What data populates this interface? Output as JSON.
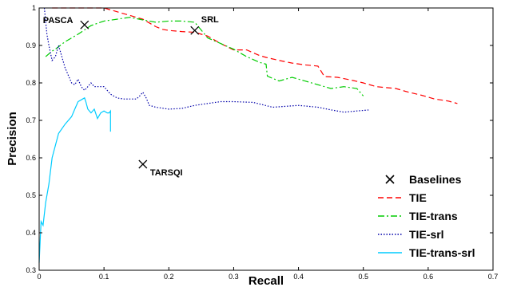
{
  "chart_data": {
    "type": "line",
    "xlabel": "Recall",
    "ylabel": "Precision",
    "xlim": [
      0,
      0.7
    ],
    "ylim": [
      0.3,
      1.0
    ],
    "xticks": [
      0,
      0.1,
      0.2,
      0.3,
      0.4,
      0.5,
      0.6,
      0.7
    ],
    "yticks": [
      0.3,
      0.4,
      0.5,
      0.6,
      0.7,
      0.8,
      0.9,
      1.0
    ],
    "xtick_labels": [
      "0",
      "0.1",
      "0.2",
      "0.3",
      "0.4",
      "0.5",
      "0.6",
      "0.7"
    ],
    "ytick_labels": [
      "0.3",
      "0.4",
      "0.5",
      "0.6",
      "0.7",
      "0.8",
      "0.9",
      "1"
    ],
    "grid": false,
    "legend_position": "bottom-right",
    "baselines": {
      "name": "Baselines",
      "color": "#000000",
      "points": [
        {
          "label": "PASCA",
          "x": 0.07,
          "y": 0.955
        },
        {
          "label": "SRL",
          "x": 0.24,
          "y": 0.94
        },
        {
          "label": "TARSQI",
          "x": 0.16,
          "y": 0.583
        }
      ]
    },
    "series": [
      {
        "name": "TIE",
        "color": "#ff0000",
        "style": "dashed",
        "x": [
          0.02,
          0.05,
          0.07,
          0.1,
          0.12,
          0.14,
          0.16,
          0.18,
          0.19,
          0.2,
          0.22,
          0.24,
          0.26,
          0.28,
          0.3,
          0.32,
          0.34,
          0.35,
          0.37,
          0.39,
          0.41,
          0.43,
          0.44,
          0.46,
          0.48,
          0.5,
          0.52,
          0.55,
          0.57,
          0.59,
          0.61,
          0.63,
          0.645
        ],
        "y": [
          1.0,
          1.0,
          1.0,
          1.0,
          0.99,
          0.98,
          0.97,
          0.95,
          0.943,
          0.94,
          0.937,
          0.935,
          0.925,
          0.905,
          0.888,
          0.888,
          0.873,
          0.868,
          0.86,
          0.853,
          0.848,
          0.845,
          0.817,
          0.815,
          0.808,
          0.8,
          0.79,
          0.785,
          0.775,
          0.767,
          0.757,
          0.752,
          0.745
        ]
      },
      {
        "name": "TIE-trans",
        "color": "#00cc00",
        "style": "dashdot",
        "x": [
          0.01,
          0.02,
          0.025,
          0.04,
          0.06,
          0.08,
          0.1,
          0.12,
          0.14,
          0.16,
          0.18,
          0.2,
          0.22,
          0.24,
          0.26,
          0.28,
          0.3,
          0.32,
          0.34,
          0.35,
          0.352,
          0.37,
          0.39,
          0.4,
          0.41,
          0.43,
          0.45,
          0.47,
          0.49,
          0.5
        ],
        "y": [
          0.87,
          0.885,
          0.89,
          0.91,
          0.93,
          0.953,
          0.965,
          0.97,
          0.975,
          0.968,
          0.962,
          0.965,
          0.965,
          0.962,
          0.92,
          0.905,
          0.89,
          0.87,
          0.855,
          0.85,
          0.818,
          0.805,
          0.815,
          0.81,
          0.805,
          0.795,
          0.785,
          0.79,
          0.785,
          0.765
        ]
      },
      {
        "name": "TIE-srl",
        "color": "#0000aa",
        "style": "dotted",
        "x": [
          0.008,
          0.012,
          0.015,
          0.02,
          0.025,
          0.03,
          0.035,
          0.04,
          0.045,
          0.05,
          0.055,
          0.06,
          0.065,
          0.07,
          0.075,
          0.08,
          0.085,
          0.09,
          0.1,
          0.11,
          0.12,
          0.13,
          0.14,
          0.15,
          0.155,
          0.16,
          0.165,
          0.17,
          0.18,
          0.2,
          0.22,
          0.24,
          0.26,
          0.28,
          0.3,
          0.33,
          0.36,
          0.4,
          0.43,
          0.45,
          0.47,
          0.49,
          0.51
        ],
        "y": [
          1.0,
          0.93,
          0.9,
          0.86,
          0.87,
          0.9,
          0.87,
          0.84,
          0.82,
          0.8,
          0.795,
          0.81,
          0.79,
          0.78,
          0.79,
          0.8,
          0.79,
          0.79,
          0.79,
          0.77,
          0.76,
          0.757,
          0.757,
          0.757,
          0.765,
          0.775,
          0.76,
          0.74,
          0.735,
          0.73,
          0.732,
          0.74,
          0.745,
          0.75,
          0.75,
          0.748,
          0.735,
          0.74,
          0.735,
          0.728,
          0.722,
          0.725,
          0.728
        ]
      },
      {
        "name": "TIE-trans-srl",
        "color": "#00ccff",
        "style": "solid",
        "x": [
          0.0,
          0.003,
          0.006,
          0.01,
          0.015,
          0.02,
          0.03,
          0.04,
          0.05,
          0.055,
          0.06,
          0.065,
          0.07,
          0.072,
          0.075,
          0.08,
          0.085,
          0.09,
          0.095,
          0.1,
          0.105,
          0.108,
          0.11,
          0.11
        ],
        "y": [
          0.32,
          0.43,
          0.42,
          0.48,
          0.53,
          0.6,
          0.665,
          0.69,
          0.71,
          0.73,
          0.75,
          0.755,
          0.76,
          0.75,
          0.73,
          0.72,
          0.73,
          0.705,
          0.72,
          0.725,
          0.72,
          0.72,
          0.725,
          0.67
        ]
      }
    ]
  }
}
